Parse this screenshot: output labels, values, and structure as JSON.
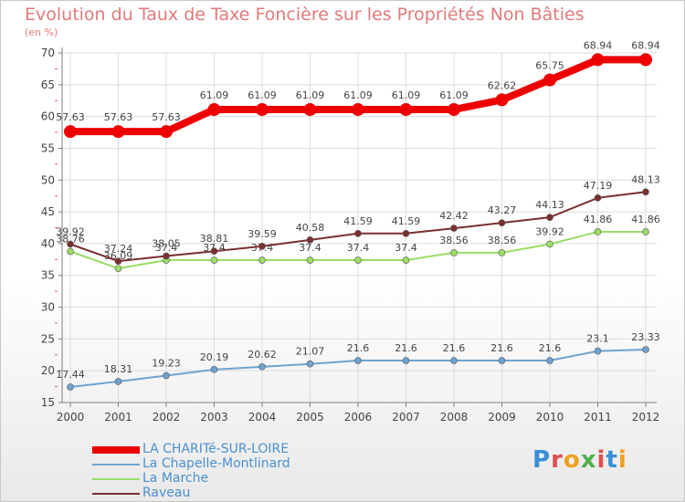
{
  "chart_data": {
    "type": "line",
    "title": "Evolution du Taux de Taxe Foncière sur les Propriétés Non Bâties",
    "ylabel": "(en %)",
    "xlabel": "",
    "x": [
      "2000",
      "2001",
      "2002",
      "2003",
      "2004",
      "2005",
      "2006",
      "2007",
      "2008",
      "2009",
      "2010",
      "2011",
      "2012"
    ],
    "ylim": [
      15,
      70
    ],
    "yticks": [
      "15",
      "20",
      "25",
      "30",
      "35",
      "40",
      "45",
      "50",
      "55",
      "60",
      "65",
      "70"
    ],
    "grid": true,
    "legend_position": "bottom-left",
    "series": [
      {
        "name": "LA CHARITé-SUR-LOIRE",
        "color": "#ee0000",
        "values": [
          57.63,
          57.63,
          57.63,
          61.09,
          61.09,
          61.09,
          61.09,
          61.09,
          61.09,
          62.62,
          65.75,
          68.94,
          68.94
        ],
        "labels": [
          "57.63",
          "57.63",
          "57.63",
          "61.09",
          "61.09",
          "61.09",
          "61.09",
          "61.09",
          "61.09",
          "62.62",
          "65.75",
          "68.94",
          "68.94"
        ]
      },
      {
        "name": "La Chapelle-Montlinard",
        "color": "#6fa3cf",
        "values": [
          17.44,
          18.31,
          19.23,
          20.19,
          20.62,
          21.07,
          21.6,
          21.6,
          21.6,
          21.6,
          21.6,
          23.1,
          23.33
        ],
        "labels": [
          "17.44",
          "18.31",
          "19.23",
          "20.19",
          "20.62",
          "21.07",
          "21.6",
          "21.6",
          "21.6",
          "21.6",
          "21.6",
          "23.1",
          "23.33"
        ]
      },
      {
        "name": "La Marche",
        "color": "#99dd66",
        "values": [
          38.76,
          36.09,
          37.4,
          37.4,
          37.4,
          37.4,
          37.4,
          37.4,
          38.56,
          38.56,
          39.92,
          41.86,
          41.86
        ],
        "labels": [
          "38.76",
          "36.09",
          "37.4",
          "37.4",
          "37.4",
          "37.4",
          "37.4",
          "37.4",
          "38.56",
          "38.56",
          "39.92",
          "41.86",
          "41.86"
        ]
      },
      {
        "name": "Raveau",
        "color": "#7a2f2f",
        "values": [
          39.92,
          37.24,
          38.05,
          38.81,
          39.59,
          40.58,
          41.59,
          41.59,
          42.42,
          43.27,
          44.13,
          47.19,
          48.13
        ],
        "labels": [
          "39.92",
          "37.24",
          "38.05",
          "38.81",
          "39.59",
          "40.58",
          "41.59",
          "41.59",
          "42.42",
          "43.27",
          "44.13",
          "47.19",
          "48.13"
        ]
      }
    ]
  },
  "brand": "Proxiti",
  "colors": {
    "title": "#e07a7a",
    "axis": "#808080",
    "grid": "#dcdcdc",
    "legend_text": "#4a8fd0"
  }
}
